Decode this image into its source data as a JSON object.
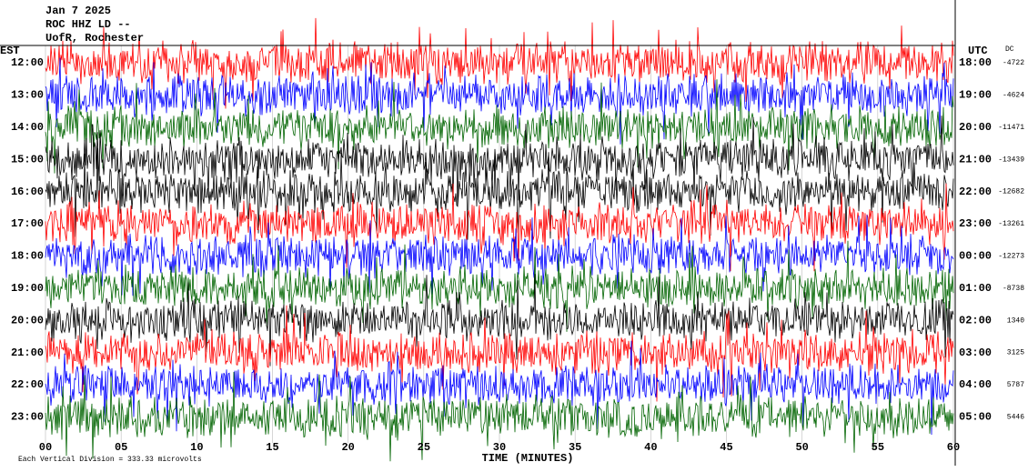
{
  "header": {
    "date": "Jan 7 2025",
    "station": "ROC HHZ LD --",
    "location": "UofR, Rochester"
  },
  "left_axis": {
    "title": "EST",
    "labels": [
      "12:00",
      "13:00",
      "14:00",
      "15:00",
      "16:00",
      "17:00",
      "18:00",
      "19:00",
      "20:00",
      "21:00",
      "22:00",
      "23:00"
    ]
  },
  "right_axis": {
    "title": "UTC",
    "labels": [
      "18:00",
      "19:00",
      "20:00",
      "21:00",
      "22:00",
      "23:00",
      "00:00",
      "01:00",
      "02:00",
      "03:00",
      "04:00",
      "05:00"
    ],
    "dc_title": "DC",
    "dc_values": [
      -4722,
      -4624,
      -11471,
      -13439,
      -12682,
      -13261,
      -12273,
      -8738,
      1340,
      3125,
      5787,
      5446
    ]
  },
  "x_axis": {
    "labels": [
      "00",
      "05",
      "10",
      "15",
      "20",
      "25",
      "30",
      "35",
      "40",
      "45",
      "50",
      "55",
      "60"
    ],
    "title": "TIME (MINUTES)"
  },
  "footer": "Each Vertical Division = 333.33 microvolts",
  "traces": {
    "colors": [
      "#ff0000",
      "#0000ff",
      "#006400",
      "#000000",
      "#000000",
      "#ff0000",
      "#0000ff",
      "#006400",
      "#000000",
      "#ff0000",
      "#0000ff",
      "#006400"
    ]
  }
}
